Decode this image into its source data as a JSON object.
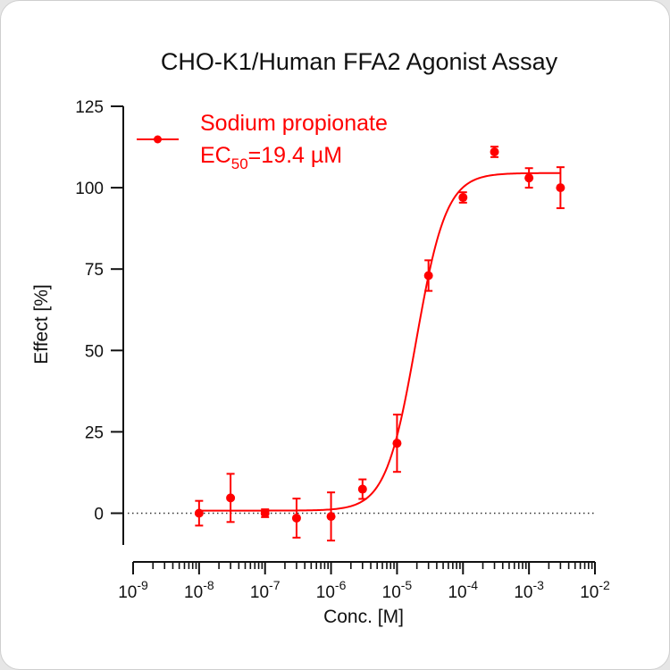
{
  "chart_data": {
    "type": "scatter",
    "title": "CHO-K1/Human FFA2 Agonist Assay",
    "xlabel": "Conc. [M]",
    "ylabel": "Effect  [%]",
    "x_scale": "log",
    "xlim": [
      1e-09,
      0.01
    ],
    "ylim": [
      -10,
      125
    ],
    "y_ticks": [
      0,
      25,
      50,
      75,
      100,
      125
    ],
    "x_tick_base": "10",
    "x_tick_exponents": [
      "-9",
      "-8",
      "-7",
      "-6",
      "-5",
      "-4",
      "-3",
      "-2"
    ],
    "reference_line_y": 0,
    "legend_position": "top-left",
    "color": "#ff0000",
    "series": [
      {
        "name": "Sodium propionate",
        "ec50_prefix": "EC",
        "ec50_subscript": "50",
        "ec50_suffix": "=19.4 µM",
        "points": [
          {
            "x": 1e-08,
            "y": 0.0,
            "err": 3.8
          },
          {
            "x": 3e-08,
            "y": 4.7,
            "err": 7.4
          },
          {
            "x": 1e-07,
            "y": 0.0,
            "err": 1.2
          },
          {
            "x": 3e-07,
            "y": -1.5,
            "err": 6.0
          },
          {
            "x": 1e-06,
            "y": -1.0,
            "err": 7.4
          },
          {
            "x": 3e-06,
            "y": 7.4,
            "err": 3.0
          },
          {
            "x": 1e-05,
            "y": 21.5,
            "err": 8.8
          },
          {
            "x": 3e-05,
            "y": 73.0,
            "err": 4.7
          },
          {
            "x": 0.0001,
            "y": 97.0,
            "err": 1.6
          },
          {
            "x": 0.0003,
            "y": 111.0,
            "err": 1.6
          },
          {
            "x": 0.001,
            "y": 103.0,
            "err": 3.0
          },
          {
            "x": 0.003,
            "y": 100.0,
            "err": 6.3
          }
        ],
        "fit": {
          "model": "four-parameter logistic",
          "bottom": 0.8,
          "top": 104.5,
          "ec50": 1.94e-05,
          "hill": 1.9,
          "x_from": 1e-08,
          "x_to": 0.003
        }
      }
    ]
  }
}
